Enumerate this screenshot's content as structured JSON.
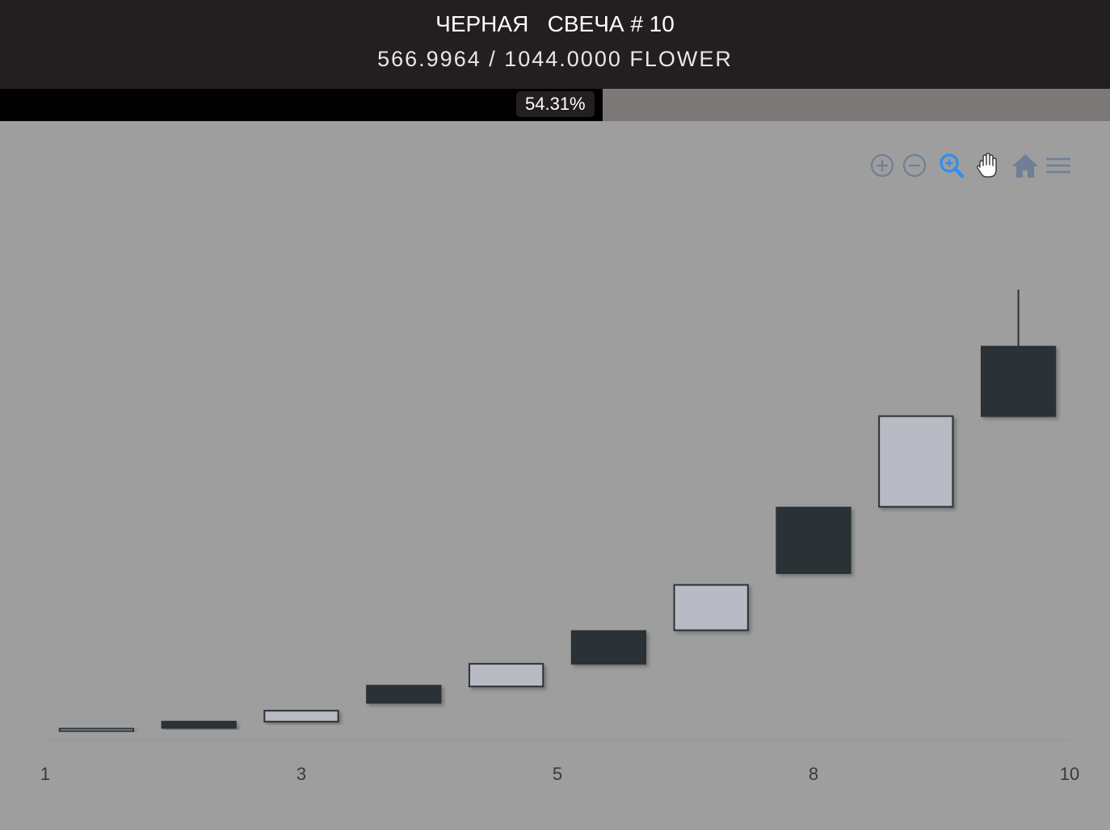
{
  "header": {
    "title": "ЧЕРНАЯ   СВЕЧА # 10",
    "subtitle": "566.9964 / 1044.0000 FLOWER"
  },
  "progress": {
    "label": "54.31%",
    "fraction": 0.5431
  },
  "toolbar": {
    "icons": [
      "zoom-in-icon",
      "zoom-out-icon",
      "selection-zoom-icon",
      "pan-hand-icon",
      "home-icon",
      "menu-icon"
    ],
    "active_color": "#2f8ef0",
    "inactive_color": "#6e7f96"
  },
  "colors": {
    "bullish_fill": "#b9bbc4",
    "bearish_fill": "#2c3035",
    "candle_stroke": "#2c3035",
    "axis_line": "#8c99a6"
  },
  "chart_data": {
    "type": "candlestick",
    "x_tick_labels": [
      "1",
      "3",
      "5",
      "8",
      "10"
    ],
    "candles": [
      {
        "open": 3,
        "close": 5,
        "low": 3,
        "high": 5,
        "direction": "up"
      },
      {
        "open": 14,
        "close": 6,
        "low": 6,
        "high": 14,
        "direction": "down"
      },
      {
        "open": 14,
        "close": 28,
        "low": 14,
        "high": 28,
        "direction": "up"
      },
      {
        "open": 60,
        "close": 38,
        "low": 38,
        "high": 60,
        "direction": "down"
      },
      {
        "open": 59,
        "close": 88,
        "low": 59,
        "high": 88,
        "direction": "up"
      },
      {
        "open": 130,
        "close": 88,
        "low": 88,
        "high": 130,
        "direction": "down"
      },
      {
        "open": 131,
        "close": 189,
        "low": 131,
        "high": 189,
        "direction": "up"
      },
      {
        "open": 288,
        "close": 204,
        "low": 204,
        "high": 288,
        "direction": "down"
      },
      {
        "open": 289,
        "close": 405,
        "low": 289,
        "high": 405,
        "direction": "up"
      },
      {
        "open": 494,
        "close": 405,
        "low": 405,
        "high": 567,
        "direction": "down"
      }
    ],
    "ylim": [
      -10,
      700
    ],
    "grid": false,
    "legend": "none"
  }
}
